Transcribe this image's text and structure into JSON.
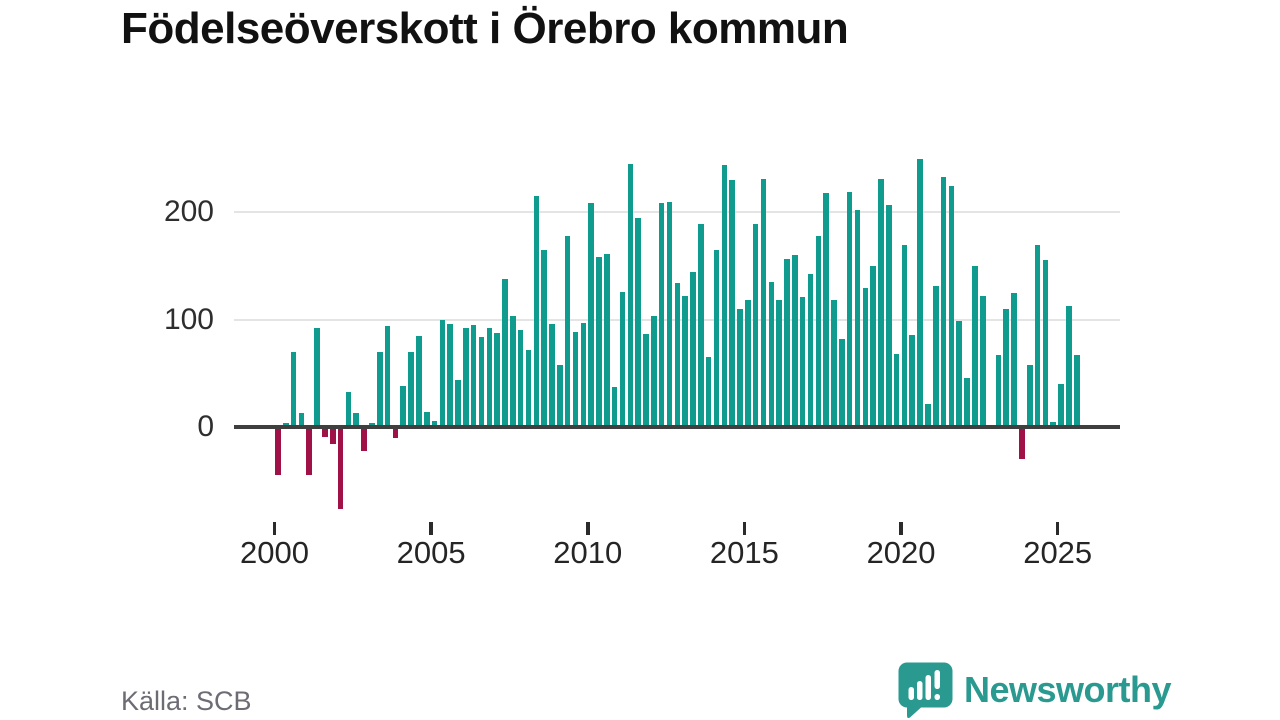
{
  "title": "Födelseöverskott i Örebro kommun",
  "source": "Källa: SCB",
  "branding": {
    "logo_text": "Newsworthy",
    "logo_color": "#2a9a91",
    "logo_icon": "speech-bubble-with-bar-chart-and-exclamation"
  },
  "chart_data": {
    "type": "bar",
    "title": "Födelseöverskott i Örebro kommun",
    "frequency": "quarterly",
    "start": "2000-Q1",
    "end": "2025-Q3",
    "grid": true,
    "legend": false,
    "ylim": [
      -90,
      265
    ],
    "y_axis": {
      "tick_labels": [
        "0",
        "100",
        "200"
      ],
      "tick_values": [
        0,
        100,
        200
      ]
    },
    "x_axis": {
      "tick_labels": [
        "2000",
        "2005",
        "2010",
        "2015",
        "2020",
        "2025"
      ],
      "tick_years": [
        2000,
        2005,
        2010,
        2015,
        2020,
        2025
      ]
    },
    "colors": {
      "positive": "#0f9b8e",
      "negative": "#a01148",
      "axis": "#3f3f3f",
      "grid": "#e4e4e4"
    },
    "series": [
      {
        "year": 2000,
        "quarters": [
          -45,
          4,
          70,
          13
        ]
      },
      {
        "year": 2001,
        "quarters": [
          -45,
          92,
          -9,
          -16
        ]
      },
      {
        "year": 2002,
        "quarters": [
          -76,
          33,
          13,
          -22
        ]
      },
      {
        "year": 2003,
        "quarters": [
          4,
          70,
          94,
          -10
        ]
      },
      {
        "year": 2004,
        "quarters": [
          38,
          70,
          85,
          14
        ]
      },
      {
        "year": 2005,
        "quarters": [
          6,
          100,
          96,
          44
        ]
      },
      {
        "year": 2006,
        "quarters": [
          92,
          95,
          84,
          92
        ]
      },
      {
        "year": 2007,
        "quarters": [
          88,
          138,
          103,
          90
        ]
      },
      {
        "year": 2008,
        "quarters": [
          72,
          215,
          165,
          96
        ]
      },
      {
        "year": 2009,
        "quarters": [
          58,
          178,
          89,
          97
        ]
      },
      {
        "year": 2010,
        "quarters": [
          209,
          158,
          161,
          37
        ]
      },
      {
        "year": 2011,
        "quarters": [
          126,
          245,
          195,
          87
        ]
      },
      {
        "year": 2012,
        "quarters": [
          103,
          209,
          210,
          134
        ]
      },
      {
        "year": 2013,
        "quarters": [
          122,
          144,
          189,
          65
        ]
      },
      {
        "year": 2014,
        "quarters": [
          165,
          244,
          230,
          110
        ]
      },
      {
        "year": 2015,
        "quarters": [
          118,
          189,
          231,
          135
        ]
      },
      {
        "year": 2016,
        "quarters": [
          118,
          157,
          160,
          121
        ]
      },
      {
        "year": 2017,
        "quarters": [
          143,
          178,
          218,
          118
        ]
      },
      {
        "year": 2018,
        "quarters": [
          82,
          219,
          202,
          130
        ]
      },
      {
        "year": 2019,
        "quarters": [
          150,
          231,
          207,
          68
        ]
      },
      {
        "year": 2020,
        "quarters": [
          170,
          86,
          250,
          21
        ]
      },
      {
        "year": 2021,
        "quarters": [
          131,
          233,
          225,
          99
        ]
      },
      {
        "year": 2022,
        "quarters": [
          46,
          150,
          122,
          0
        ]
      },
      {
        "year": 2023,
        "quarters": [
          67,
          110,
          125,
          -30
        ]
      },
      {
        "year": 2024,
        "quarters": [
          58,
          170,
          156,
          5
        ]
      },
      {
        "year": 2025,
        "quarters": [
          40,
          113,
          67
        ]
      }
    ]
  }
}
